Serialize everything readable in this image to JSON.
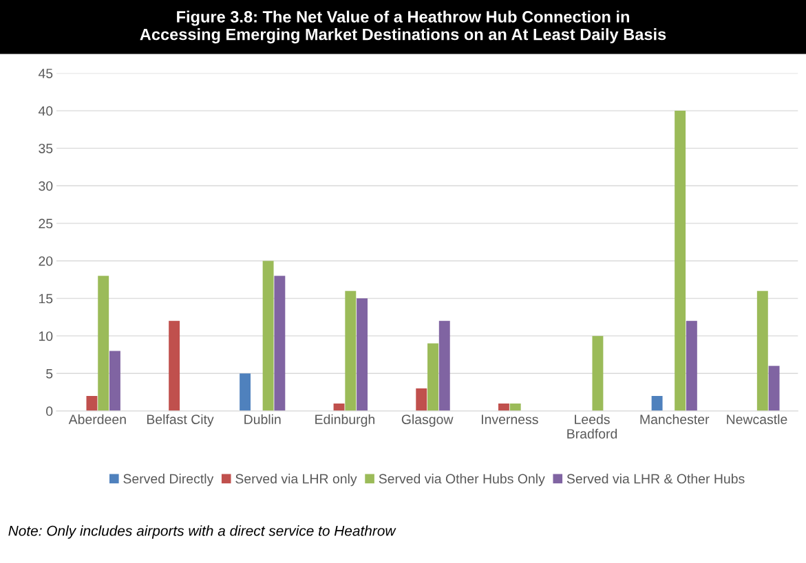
{
  "chart_data": {
    "type": "bar",
    "title": "Figure 3.8: The Net Value of a Heathrow Hub Connection in\nAccessing Emerging Market Destinations on an At Least Daily Basis",
    "categories": [
      "Aberdeen",
      "Belfast City",
      "Dublin",
      "Edinburgh",
      "Glasgow",
      "Inverness",
      "Leeds Bradford",
      "Manchester",
      "Newcastle"
    ],
    "series": [
      {
        "name": "Served Directly",
        "color": "#4f81bd",
        "values": [
          0,
          0,
          5,
          0,
          0,
          0,
          0,
          2,
          0
        ]
      },
      {
        "name": "Served via LHR only",
        "color": "#c0504d",
        "values": [
          2,
          12,
          0,
          1,
          3,
          1,
          0,
          0,
          0
        ]
      },
      {
        "name": "Served via Other Hubs Only",
        "color": "#9bbb59",
        "values": [
          18,
          0,
          20,
          16,
          9,
          1,
          10,
          40,
          16
        ]
      },
      {
        "name": "Served via LHR & Other Hubs",
        "color": "#8064a2",
        "values": [
          8,
          0,
          18,
          15,
          12,
          0,
          0,
          12,
          6
        ]
      }
    ],
    "ylim": [
      0,
      45
    ],
    "yticks": [
      0,
      5,
      10,
      15,
      20,
      25,
      30,
      35,
      40,
      45
    ],
    "grid": "y",
    "legend": "bottom",
    "annotations": [
      "Note: Only includes airports with a direct service to Heathrow"
    ]
  }
}
